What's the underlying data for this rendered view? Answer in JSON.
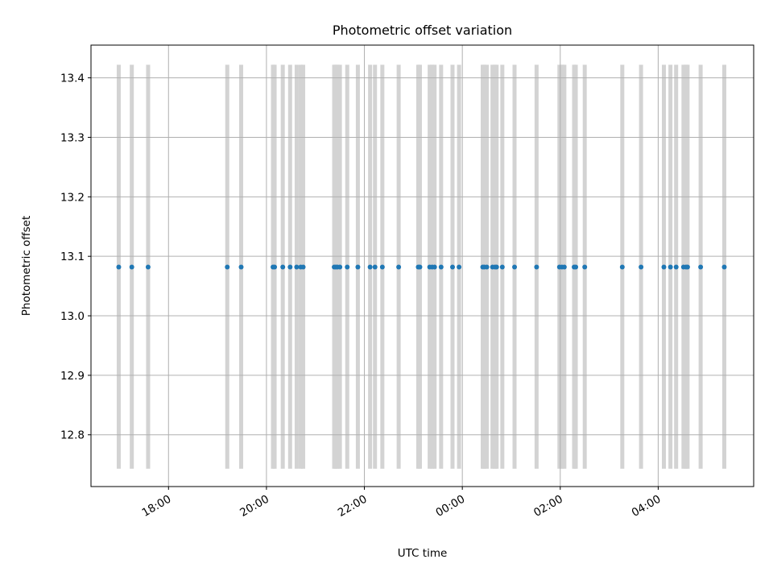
{
  "chart_data": {
    "type": "scatter",
    "title": "Photometric offset variation",
    "xlabel": "UTC time",
    "ylabel": "Photometric offset",
    "x_axis": "time",
    "xlim": [
      "16:25",
      "05:57"
    ],
    "ylim": [
      12.713,
      13.455
    ],
    "x_ticks": [
      "18:00",
      "20:00",
      "22:00",
      "00:00",
      "02:00",
      "04:00"
    ],
    "y_ticks": [
      "12.8",
      "12.9",
      "13.0",
      "13.1",
      "13.2",
      "13.3",
      "13.4"
    ],
    "grid": true,
    "point_color": "#1f77b4",
    "band_color": "#d3d3d3",
    "band_range": [
      12.743,
      13.422
    ],
    "series": [
      {
        "values": 13.082,
        "x": [
          "16:59",
          "17:15",
          "17:35",
          "19:12",
          "19:29",
          "20:08",
          "20:10",
          "20:20",
          "20:29",
          "20:37",
          "20:42",
          "20:45",
          "21:23",
          "21:25",
          "21:27",
          "21:30",
          "21:39",
          "21:52",
          "22:07",
          "22:13",
          "22:22",
          "22:42",
          "23:06",
          "23:08",
          "23:20",
          "23:23",
          "23:26",
          "23:34",
          "23:48",
          "23:56",
          "00:25",
          "00:27",
          "00:30",
          "00:37",
          "00:40",
          "00:42",
          "00:49",
          "01:04",
          "01:31",
          "01:59",
          "02:02",
          "02:05",
          "02:17",
          "02:19",
          "02:30",
          "03:16",
          "03:39",
          "04:07",
          "04:15",
          "04:22",
          "04:31",
          "04:34",
          "04:36",
          "04:52",
          "05:21"
        ]
      }
    ]
  }
}
